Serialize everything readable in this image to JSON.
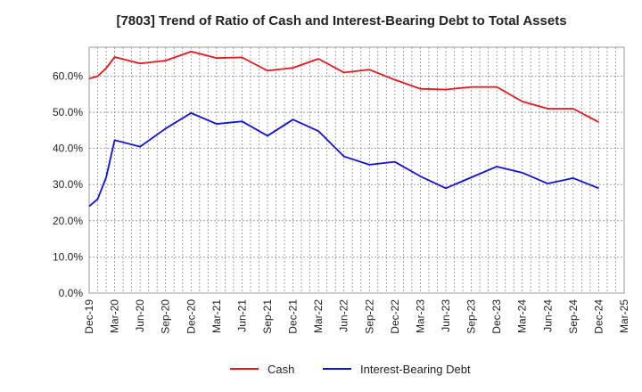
{
  "chart_data": {
    "type": "line",
    "title": "[7803]  Trend of Ratio of Cash and Interest-Bearing Debt to Total Assets",
    "xlabel": "",
    "ylabel": "",
    "ylim": [
      0,
      68
    ],
    "yticks": [
      0,
      10,
      20,
      30,
      40,
      50,
      60
    ],
    "ytick_labels": [
      "0.0%",
      "10.0%",
      "20.0%",
      "30.0%",
      "40.0%",
      "50.0%",
      "60.0%"
    ],
    "xtick_labels": [
      "Dec-19",
      "Mar-20",
      "Jun-20",
      "Sep-20",
      "Dec-20",
      "Mar-21",
      "Jun-21",
      "Sep-21",
      "Dec-21",
      "Mar-22",
      "Jun-22",
      "Sep-22",
      "Dec-22",
      "Mar-23",
      "Jun-23",
      "Sep-23",
      "Dec-23",
      "Mar-24",
      "Jun-24",
      "Sep-24",
      "Dec-24",
      "Mar-25"
    ],
    "grid": true,
    "legend_position": "bottom",
    "x": [
      "Dec-19",
      "Jan-20",
      "Feb-20",
      "Mar-20",
      "Jun-20",
      "Sep-20",
      "Dec-20",
      "Mar-21",
      "Jun-21",
      "Sep-21",
      "Dec-21",
      "Mar-22",
      "Jun-22",
      "Sep-22",
      "Dec-22",
      "Mar-23",
      "Jun-23",
      "Sep-23",
      "Dec-23",
      "Mar-24",
      "Jun-24",
      "Sep-24",
      "Dec-24"
    ],
    "series": [
      {
        "name": "Cash",
        "color": "#e8161b",
        "values": [
          59.3,
          60.0,
          62.2,
          65.3,
          63.5,
          64.3,
          66.8,
          65.0,
          65.2,
          61.5,
          62.3,
          64.8,
          61.0,
          61.8,
          59.0,
          56.5,
          56.3,
          57.0,
          57.0,
          53.0,
          51.0,
          51.0,
          47.3
        ]
      },
      {
        "name": "Interest-Bearing Debt",
        "color": "#1010d8",
        "values": [
          24.0,
          26.0,
          32.0,
          42.3,
          40.5,
          45.5,
          49.8,
          46.8,
          47.5,
          43.5,
          48.0,
          44.8,
          37.8,
          35.5,
          36.3,
          32.3,
          29.0,
          32.0,
          35.0,
          33.3,
          30.3,
          31.8,
          29.0
        ]
      }
    ]
  }
}
